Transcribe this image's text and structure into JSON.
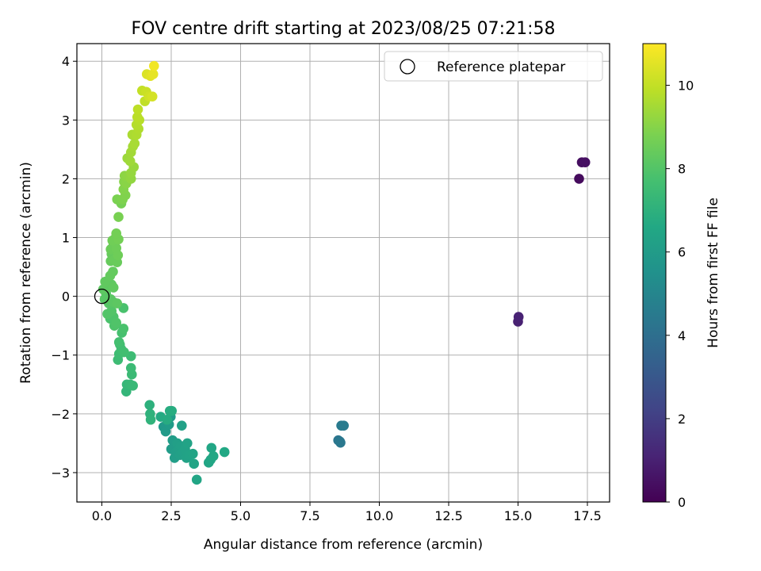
{
  "chart_data": {
    "type": "scatter",
    "title": "FOV centre drift starting at 2023/08/25 07:21:58",
    "xlabel": "Angular distance from reference (arcmin)",
    "ylabel": "Rotation from reference (arcmin)",
    "xlim": [
      -0.9,
      18.3
    ],
    "ylim": [
      -3.5,
      4.3
    ],
    "x_ticks": [
      "0.0",
      "2.5",
      "5.0",
      "7.5",
      "10.0",
      "12.5",
      "15.0",
      "17.5"
    ],
    "y_ticks": [
      "−3",
      "−2",
      "−1",
      "0",
      "1",
      "2",
      "3",
      "4"
    ],
    "grid": true,
    "legend": {
      "position": "top-right",
      "entries": [
        {
          "label": "Reference platepar",
          "marker": "open-circle",
          "x": 0,
          "y": 0
        }
      ]
    },
    "colorbar": {
      "label": "Hours from first FF file",
      "range": [
        0,
        11
      ],
      "ticks": [
        "0",
        "2",
        "4",
        "6",
        "8",
        "10"
      ],
      "colormap": "viridis"
    },
    "series": [
      {
        "points": [
          [
            17.2,
            2.0,
            0.3
          ],
          [
            17.3,
            2.28,
            0.4
          ],
          [
            17.42,
            2.28,
            0.45
          ],
          [
            15.0,
            -0.43,
            1.0
          ],
          [
            15.02,
            -0.35,
            1.05
          ],
          [
            8.52,
            -2.45,
            4.3
          ],
          [
            8.58,
            -2.47,
            4.35
          ],
          [
            8.6,
            -2.49,
            4.4
          ],
          [
            8.63,
            -2.2,
            4.5
          ],
          [
            8.72,
            -2.2,
            4.55
          ],
          [
            2.22,
            -2.22,
            5.9
          ],
          [
            2.3,
            -2.3,
            5.95
          ],
          [
            2.42,
            -2.18,
            6.0
          ],
          [
            2.48,
            -2.05,
            6.0
          ],
          [
            2.5,
            -2.6,
            6.05
          ],
          [
            2.55,
            -2.45,
            6.05
          ],
          [
            2.62,
            -2.75,
            6.1
          ],
          [
            2.68,
            -2.65,
            6.1
          ],
          [
            2.72,
            -2.5,
            6.15
          ],
          [
            2.78,
            -2.6,
            6.15
          ],
          [
            2.82,
            -2.7,
            6.2
          ],
          [
            2.85,
            -2.55,
            6.2
          ],
          [
            2.88,
            -2.2,
            6.25
          ],
          [
            2.92,
            -2.65,
            6.25
          ],
          [
            3.0,
            -2.6,
            6.3
          ],
          [
            3.05,
            -2.75,
            6.3
          ],
          [
            3.08,
            -2.5,
            6.35
          ],
          [
            3.18,
            -2.7,
            6.35
          ],
          [
            3.28,
            -2.68,
            6.4
          ],
          [
            3.32,
            -2.85,
            6.4
          ],
          [
            3.42,
            -3.12,
            6.45
          ],
          [
            3.85,
            -2.83,
            6.45
          ],
          [
            3.92,
            -2.78,
            6.5
          ],
          [
            3.95,
            -2.58,
            6.5
          ],
          [
            4.02,
            -2.72,
            6.55
          ],
          [
            4.42,
            -2.65,
            6.6
          ],
          [
            2.12,
            -2.05,
            6.7
          ],
          [
            2.35,
            -2.1,
            6.75
          ],
          [
            2.45,
            -1.95,
            6.8
          ],
          [
            2.52,
            -1.95,
            6.8
          ],
          [
            1.72,
            -1.85,
            7.0
          ],
          [
            1.74,
            -2.0,
            7.05
          ],
          [
            1.76,
            -2.1,
            7.1
          ],
          [
            0.88,
            -1.62,
            7.2
          ],
          [
            0.9,
            -1.5,
            7.25
          ],
          [
            1.02,
            -1.5,
            7.3
          ],
          [
            1.12,
            -1.52,
            7.35
          ],
          [
            1.08,
            -1.33,
            7.4
          ],
          [
            1.05,
            -1.22,
            7.45
          ],
          [
            1.05,
            -1.02,
            7.5
          ],
          [
            0.58,
            -1.08,
            7.5
          ],
          [
            0.62,
            -0.98,
            7.55
          ],
          [
            0.7,
            -0.9,
            7.6
          ],
          [
            0.65,
            -0.82,
            7.6
          ],
          [
            0.8,
            -0.95,
            7.65
          ],
          [
            0.62,
            -0.78,
            7.7
          ],
          [
            0.72,
            -0.62,
            7.75
          ],
          [
            0.78,
            -0.55,
            7.8
          ],
          [
            0.78,
            -0.2,
            7.8
          ],
          [
            0.3,
            -0.38,
            7.85
          ],
          [
            0.42,
            -0.35,
            7.9
          ],
          [
            0.45,
            -0.5,
            7.9
          ],
          [
            0.52,
            -0.45,
            7.95
          ],
          [
            0.35,
            -0.25,
            8.0
          ],
          [
            0.2,
            -0.3,
            8.0
          ],
          [
            0.25,
            -0.12,
            8.05
          ],
          [
            0.1,
            -0.05,
            8.1
          ],
          [
            0.15,
            0.05,
            8.1
          ],
          [
            0.32,
            -0.05,
            8.15
          ],
          [
            0.42,
            -0.1,
            8.15
          ],
          [
            0.55,
            -0.12,
            8.2
          ],
          [
            0.05,
            0.12,
            8.2
          ],
          [
            0.18,
            0.15,
            8.25
          ],
          [
            0.35,
            0.2,
            8.25
          ],
          [
            0.42,
            0.15,
            8.3
          ],
          [
            0.12,
            0.25,
            8.3
          ],
          [
            0.3,
            0.35,
            8.35
          ],
          [
            0.4,
            0.42,
            8.35
          ],
          [
            0.32,
            0.6,
            8.4
          ],
          [
            0.35,
            0.72,
            8.4
          ],
          [
            0.45,
            0.62,
            8.45
          ],
          [
            0.55,
            0.58,
            8.45
          ],
          [
            0.32,
            0.8,
            8.5
          ],
          [
            0.42,
            0.9,
            8.5
          ],
          [
            0.52,
            0.82,
            8.55
          ],
          [
            0.58,
            0.7,
            8.55
          ],
          [
            0.38,
            0.95,
            8.6
          ],
          [
            0.5,
            1.0,
            8.6
          ],
          [
            0.6,
            0.97,
            8.65
          ],
          [
            0.52,
            1.07,
            8.65
          ],
          [
            0.7,
            1.58,
            8.7
          ],
          [
            0.6,
            1.35,
            8.75
          ],
          [
            0.55,
            1.65,
            8.8
          ],
          [
            0.75,
            1.65,
            8.85
          ],
          [
            0.85,
            1.72,
            8.9
          ],
          [
            0.78,
            1.82,
            8.95
          ],
          [
            0.8,
            1.95,
            9.0
          ],
          [
            0.88,
            1.92,
            9.05
          ],
          [
            0.82,
            2.05,
            9.1
          ],
          [
            0.95,
            2.05,
            9.15
          ],
          [
            1.05,
            2.0,
            9.2
          ],
          [
            1.05,
            2.1,
            9.25
          ],
          [
            1.15,
            2.2,
            9.3
          ],
          [
            0.92,
            2.35,
            9.35
          ],
          [
            1.02,
            2.3,
            9.4
          ],
          [
            1.05,
            2.45,
            9.45
          ],
          [
            1.12,
            2.55,
            9.5
          ],
          [
            1.18,
            2.6,
            9.55
          ],
          [
            1.1,
            2.75,
            9.6
          ],
          [
            1.25,
            2.75,
            9.65
          ],
          [
            1.32,
            2.85,
            9.7
          ],
          [
            1.25,
            2.92,
            9.75
          ],
          [
            1.35,
            3.0,
            9.8
          ],
          [
            1.28,
            3.05,
            9.85
          ],
          [
            1.3,
            3.18,
            9.9
          ],
          [
            1.55,
            3.32,
            9.95
          ],
          [
            1.45,
            3.5,
            10.0
          ],
          [
            1.6,
            3.48,
            10.1
          ],
          [
            1.7,
            3.4,
            10.2
          ],
          [
            1.82,
            3.4,
            10.3
          ],
          [
            1.62,
            3.78,
            10.4
          ],
          [
            1.75,
            3.75,
            10.5
          ],
          [
            1.85,
            3.78,
            10.6
          ],
          [
            1.88,
            3.92,
            10.8
          ]
        ]
      }
    ]
  }
}
